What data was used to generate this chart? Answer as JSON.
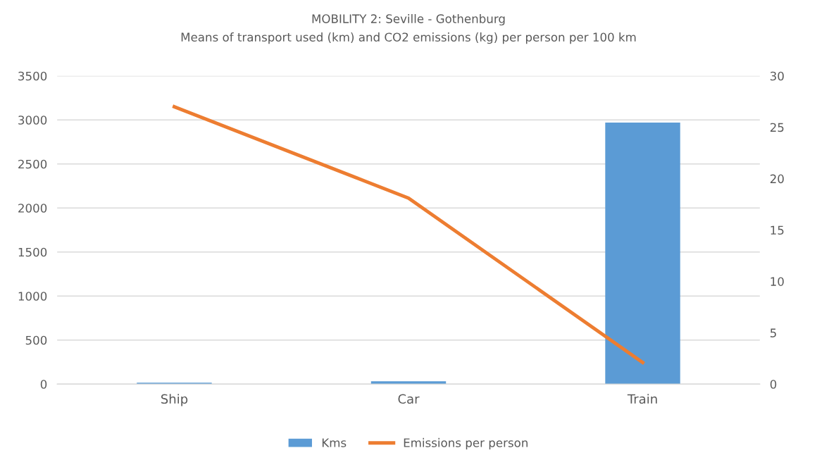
{
  "chart_data": {
    "type": "bar",
    "title": "MOBILITY 2: Seville - Gothenburg",
    "subtitle": "Means of transport used (km) and CO2 emissions (kg) per person per 100 km",
    "categories": [
      "Ship",
      "Car",
      "Train"
    ],
    "series": [
      {
        "name": "Kms",
        "color": "#5b9bd5",
        "values": [
          16,
          32,
          2970
        ]
      },
      {
        "name": "Emissions per person",
        "type": "line",
        "axis": "y2",
        "color": "#ed7d31",
        "values": [
          27.0,
          18.1,
          2.1
        ]
      }
    ],
    "ylim": [
      0,
      3500
    ],
    "yticks": [
      0,
      500,
      1000,
      1500,
      2000,
      2500,
      3000,
      3500
    ],
    "y2lim": [
      0,
      30
    ],
    "y2ticks": [
      0,
      5,
      10,
      15,
      20,
      25,
      30
    ],
    "grid": "y",
    "legend": "bottom",
    "marker": "none"
  }
}
